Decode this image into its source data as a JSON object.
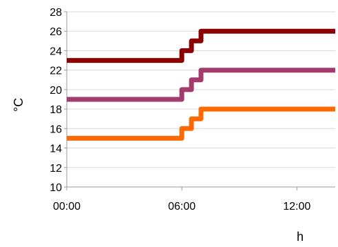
{
  "chart_data": {
    "type": "line",
    "xlabel": "h",
    "ylabel": "°C",
    "x_ticks": [
      "00:00",
      "06:00",
      "12:00"
    ],
    "x_tick_hours": [
      0,
      6,
      12
    ],
    "xlim": [
      0,
      14
    ],
    "ylim": [
      10,
      28
    ],
    "y_ticks": [
      "10",
      "12",
      "14",
      "16",
      "18",
      "20",
      "22",
      "24",
      "26",
      "28"
    ],
    "y_tick_values": [
      10,
      12,
      14,
      16,
      18,
      20,
      22,
      24,
      26,
      28
    ],
    "grid": "horizontal",
    "series": [
      {
        "color": "#8b0000",
        "x": [
          0,
          6,
          6,
          6.5,
          6.5,
          7,
          7,
          14
        ],
        "y": [
          23,
          23,
          24,
          24,
          25,
          25,
          26,
          26
        ]
      },
      {
        "color": "#a33b6e",
        "x": [
          0,
          6,
          6,
          6.5,
          6.5,
          7,
          7,
          14
        ],
        "y": [
          19,
          19,
          20,
          20,
          21,
          21,
          22,
          22
        ]
      },
      {
        "color": "#ff6a00",
        "x": [
          0,
          6,
          6,
          6.5,
          6.5,
          7,
          7,
          14
        ],
        "y": [
          15,
          15,
          16,
          16,
          17,
          17,
          18,
          18
        ]
      }
    ]
  }
}
